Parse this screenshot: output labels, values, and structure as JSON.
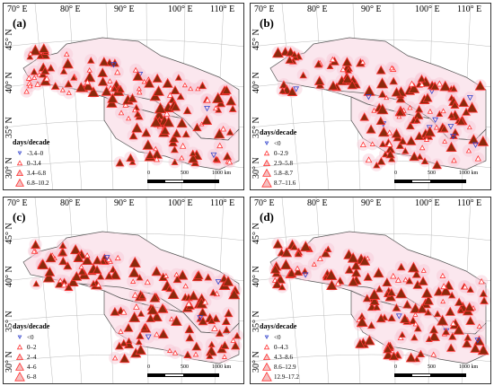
{
  "panels": [
    {
      "id": "a",
      "label": "(a)",
      "legend_title": "days/decade",
      "classes": [
        "-3.4–0",
        "0–3.4",
        "3.4–6.8",
        "6.8–10.2"
      ]
    },
    {
      "id": "b",
      "label": "(b)",
      "legend_title": "days/decade",
      "classes": [
        "<0",
        "0–2.9",
        "2.9–5.8",
        "5.8–8.7",
        "8.7–11.6"
      ]
    },
    {
      "id": "c",
      "label": "(c)",
      "legend_title": "days/decade",
      "classes": [
        "<0",
        "0–2",
        "2–4",
        "4–6",
        "6–8"
      ]
    },
    {
      "id": "d",
      "label": "(d)",
      "legend_title": "days/decade",
      "classes": [
        "<0",
        "0–4.3",
        "4.3–8.6",
        "8.6–12.9",
        "12.9–17.2"
      ]
    }
  ],
  "lon_labels": [
    "70° E",
    "80° E",
    "90° E",
    "100° E",
    "110° E"
  ],
  "lat_labels": [
    "45° N",
    "40° N",
    "35° N",
    "30° N"
  ],
  "scale": {
    "labels": [
      "0",
      "500",
      "1000 km"
    ]
  },
  "colors": {
    "increase_fill": "#8b2a0c",
    "increase_stroke": "#ff3333",
    "decrease": "#3344cc",
    "region_halo": "#f6c8d4",
    "boundary": "#555555"
  }
}
